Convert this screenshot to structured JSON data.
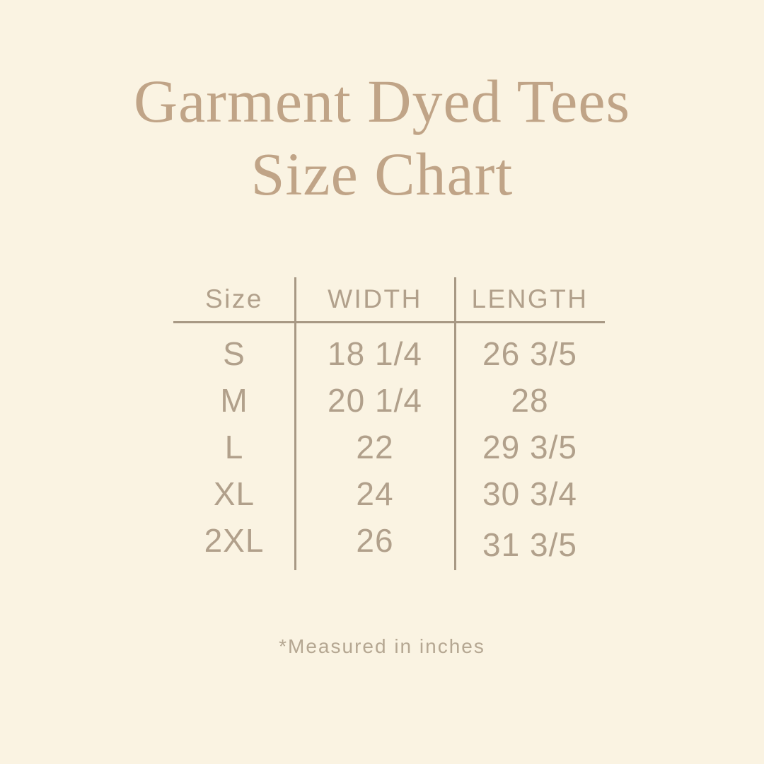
{
  "colors": {
    "background": "#faf3e2",
    "title_text": "#c0a487",
    "table_text": "#b1a08b",
    "divider_lines": "#a79884",
    "footnote_text": "#b5a792"
  },
  "title": {
    "line1": "Garment Dyed Tees",
    "line2": "Size Chart"
  },
  "chart_data": {
    "type": "table",
    "title": "Garment Dyed Tees Size Chart",
    "columns": [
      "Size",
      "WIDTH",
      "LENGTH"
    ],
    "rows": [
      [
        "S",
        "18 1/4",
        "26 3/5"
      ],
      [
        "M",
        "20 1/4",
        "28"
      ],
      [
        "L",
        "22",
        "29 3/5"
      ],
      [
        "XL",
        "24",
        "30 3/4"
      ],
      [
        "2XL",
        "26",
        "31 3/5"
      ]
    ],
    "note": "*Measured in inches",
    "units": "inches",
    "layout": "three-column table with vertical dividers between columns and a horizontal rule under the header"
  }
}
